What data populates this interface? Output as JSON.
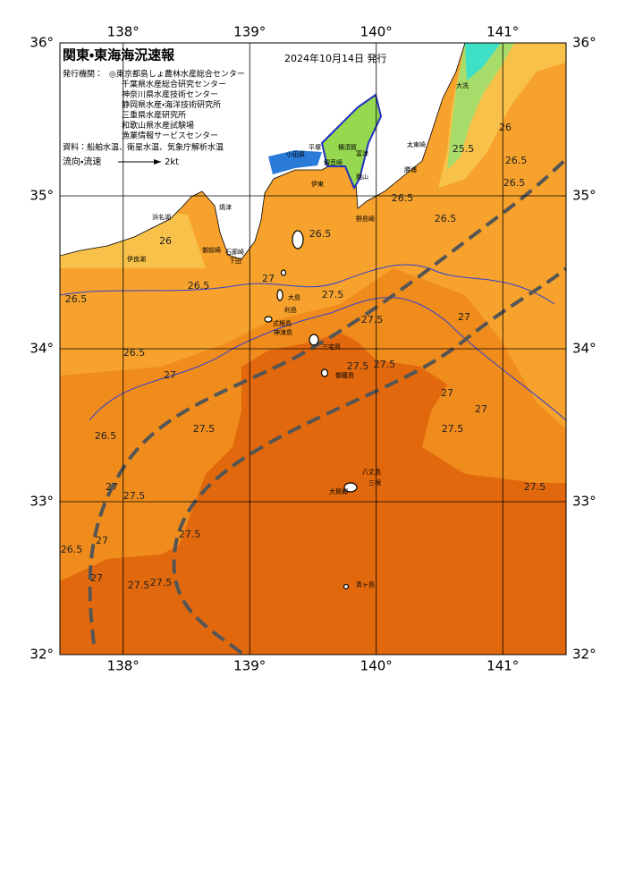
{
  "header": {
    "title": "関東・東海海況速報",
    "date": "2024年10月14日 発行"
  },
  "issuers": {
    "label": "発行機関：",
    "items": [
      "◎東京都島しょ農林水産総合センター",
      "千葉県水産総合研究センター",
      "神奈川県水産技術センター",
      "静岡県水産・海洋技術研究所",
      "三重県水産研究所",
      "和歌山県水産試験場",
      "漁業情報サービスセンター"
    ]
  },
  "source": "資料：船舶水温、衛星水温、気象庁解析水温",
  "legend": {
    "label": "流向・流速",
    "speed": "2kt"
  },
  "axes": {
    "lon_range": [
      137.5,
      141.5
    ],
    "lat_range": [
      32,
      36
    ],
    "lon_ticks": [
      {
        "value": 138,
        "label": "138°"
      },
      {
        "value": 139,
        "label": "139°"
      },
      {
        "value": 140,
        "label": "140°"
      },
      {
        "value": 141,
        "label": "141°"
      }
    ],
    "lat_ticks": [
      {
        "value": 32,
        "label": "32°"
      },
      {
        "value": 33,
        "label": "33°"
      },
      {
        "value": 34,
        "label": "34°"
      },
      {
        "value": 35,
        "label": "35°"
      },
      {
        "value": 36,
        "label": "36°"
      }
    ]
  },
  "place_names": [
    "大洗",
    "太東崎",
    "勝浦",
    "平塚",
    "横須賀",
    "富津",
    "小田原",
    "観音崎",
    "館山",
    "野島崎",
    "伊東",
    "焼津",
    "御前崎",
    "石廊崎",
    "下田",
    "浜名湖",
    "伊良湖",
    "大島",
    "利島",
    "式根島",
    "神津島",
    "三宅島",
    "御蔵島",
    "八丈島",
    "三根",
    "大賀郷",
    "青ヶ島"
  ],
  "contour_labels": [
    "26",
    "25.5",
    "26.5",
    "26.5",
    "26.5",
    "26.5",
    "26.5",
    "26",
    "26.5",
    "26.5",
    "27",
    "27.5",
    "27.5",
    "27",
    "27.5",
    "27",
    "27.5",
    "27",
    "27",
    "27",
    "26.5",
    "26.5",
    "27",
    "27.5",
    "27.5",
    "27.5",
    "27",
    "26.5",
    "27.5",
    "27.5",
    "27.5",
    "27.5"
  ]
}
